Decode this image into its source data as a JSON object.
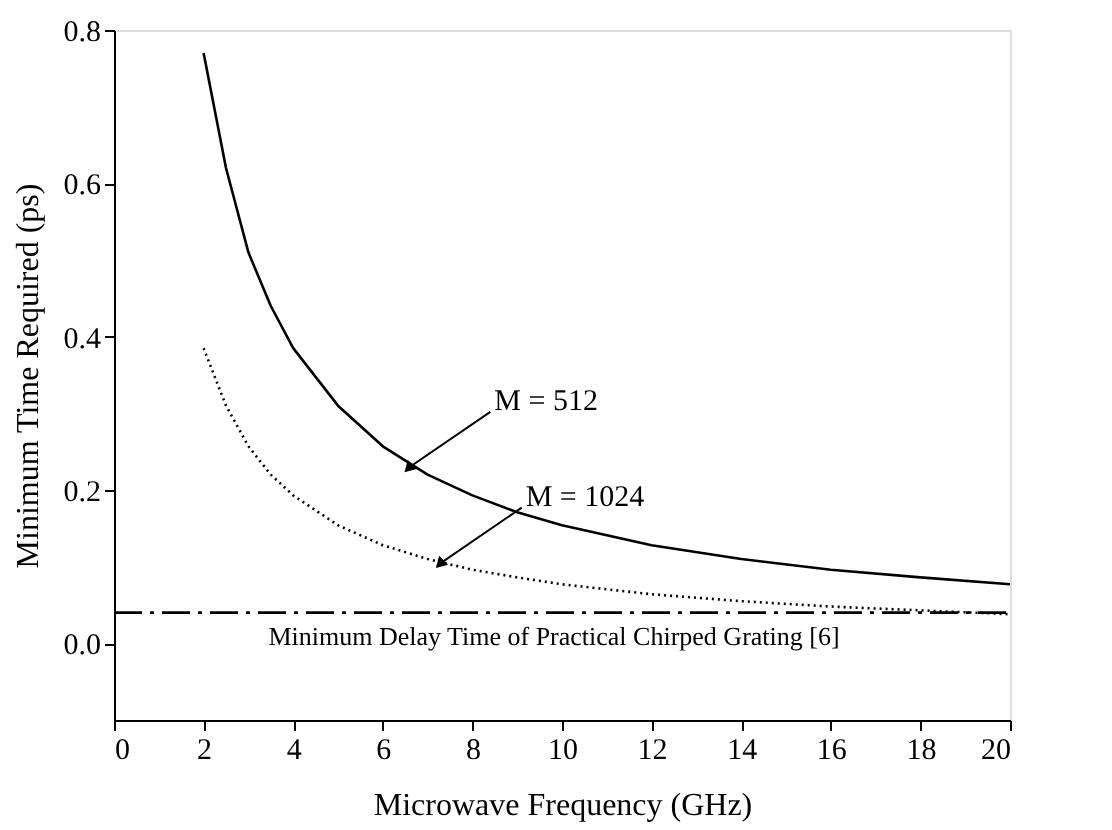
{
  "chart_data": {
    "type": "line",
    "xlabel": "Microwave Frequency (GHz)",
    "ylabel": "Minimum Time Required (ps)",
    "x": [
      2,
      2.5,
      3,
      3.5,
      4,
      5,
      6,
      7,
      8,
      9,
      10,
      12,
      14,
      16,
      18,
      20
    ],
    "series": [
      {
        "color": "#000000",
        "line_style": "solid",
        "values": [
          0.77,
          0.62,
          0.51,
          0.44,
          0.385,
          0.31,
          0.257,
          0.22,
          0.193,
          0.171,
          0.154,
          0.128,
          0.11,
          0.096,
          0.086,
          0.077
        ]
      },
      {
        "color": "#000000",
        "line_style": "dotted",
        "values": [
          0.385,
          0.31,
          0.257,
          0.22,
          0.193,
          0.154,
          0.128,
          0.11,
          0.096,
          0.086,
          0.077,
          0.064,
          0.055,
          0.048,
          0.043,
          0.038
        ]
      }
    ],
    "xlim": [
      0,
      20
    ],
    "xticks": [
      0,
      2,
      4,
      6,
      8,
      10,
      12,
      14,
      16,
      18,
      20
    ],
    "ylim": [
      -0.1,
      0.8
    ],
    "yticks": [
      {
        "value": 0,
        "label": "0.0"
      },
      0.2,
      0.4,
      0.6,
      0.8
    ],
    "ref_lines": [
      {
        "axis": "y",
        "value": 0.04,
        "label": "Minimum Delay Time of Practical Chirped Grating [6]",
        "color": "#000000",
        "line_style": "dashed"
      }
    ],
    "annotations": [
      {
        "text": "M = 512",
        "x": 6.6,
        "y": 0.23
      },
      {
        "text": "M = 1024",
        "x": 7.3,
        "y": 0.105
      }
    ],
    "grid": false,
    "marker": "none"
  }
}
